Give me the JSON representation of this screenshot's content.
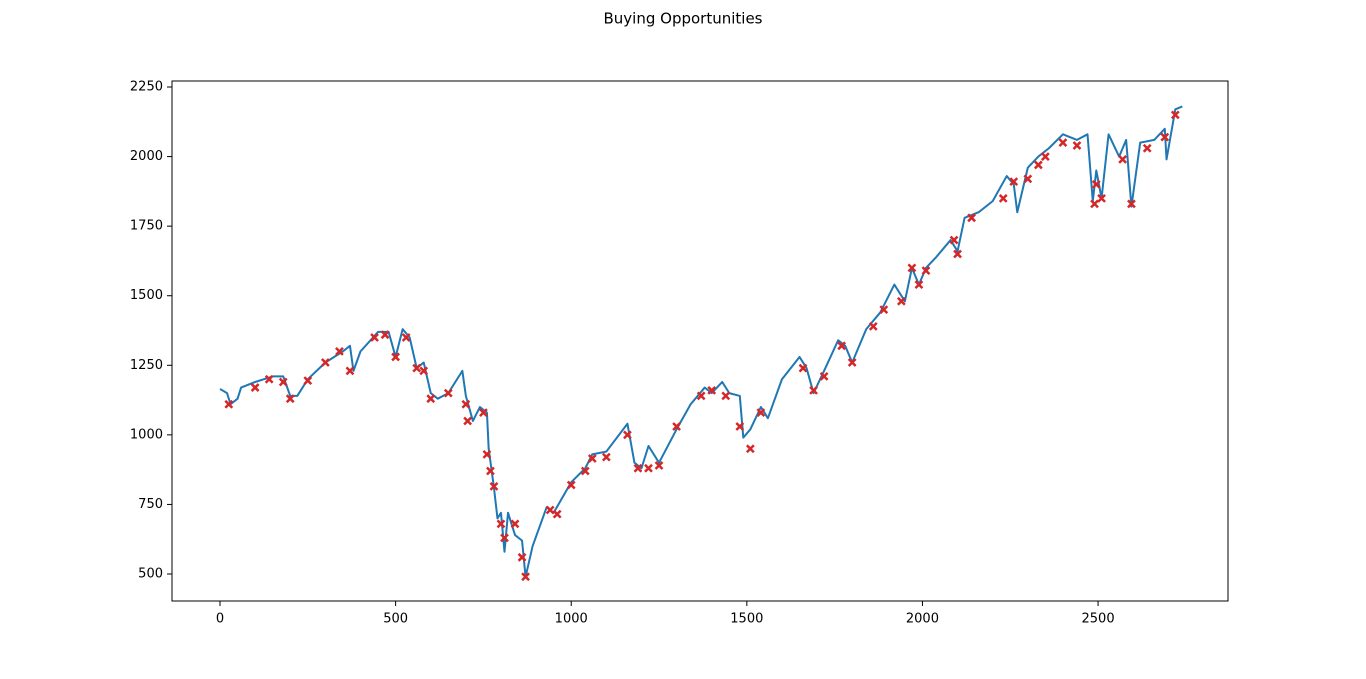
{
  "chart_data": {
    "type": "line",
    "title": "Buying Opportunities",
    "xlim": [
      -136.7,
      2870
    ],
    "ylim": [
      403,
      2271.6
    ],
    "xticks": [
      0,
      500,
      1000,
      1500,
      2000,
      2500
    ],
    "yticks": [
      500,
      750,
      1000,
      1250,
      1500,
      1750,
      2000,
      2250
    ],
    "series": [
      {
        "color": "#1f77b4",
        "x": [
          0,
          20,
          30,
          50,
          60,
          100,
          150,
          180,
          200,
          220,
          250,
          300,
          350,
          370,
          380,
          400,
          450,
          480,
          500,
          520,
          540,
          560,
          580,
          600,
          620,
          650,
          690,
          700,
          720,
          740,
          760,
          765,
          780,
          790,
          800,
          810,
          820,
          840,
          860,
          870,
          890,
          930,
          950,
          1000,
          1040,
          1060,
          1100,
          1160,
          1180,
          1200,
          1220,
          1250,
          1300,
          1340,
          1380,
          1400,
          1430,
          1450,
          1480,
          1490,
          1510,
          1540,
          1560,
          1600,
          1650,
          1670,
          1690,
          1720,
          1760,
          1780,
          1800,
          1840,
          1880,
          1920,
          1950,
          1970,
          1990,
          2010,
          2040,
          2080,
          2100,
          2120,
          2160,
          2200,
          2240,
          2260,
          2270,
          2300,
          2330,
          2360,
          2400,
          2440,
          2470,
          2485,
          2495,
          2510,
          2530,
          2560,
          2580,
          2595,
          2620,
          2660,
          2690,
          2695,
          2720,
          2740
        ],
        "values": [
          1165,
          1150,
          1110,
          1130,
          1170,
          1190,
          1210,
          1210,
          1140,
          1140,
          1200,
          1260,
          1300,
          1320,
          1230,
          1300,
          1370,
          1370,
          1280,
          1380,
          1350,
          1240,
          1260,
          1150,
          1130,
          1150,
          1230,
          1140,
          1050,
          1100,
          1080,
          950,
          810,
          700,
          720,
          580,
          720,
          640,
          620,
          490,
          600,
          740,
          720,
          830,
          880,
          930,
          940,
          1040,
          900,
          880,
          960,
          900,
          1020,
          1110,
          1170,
          1150,
          1190,
          1150,
          1140,
          990,
          1020,
          1100,
          1060,
          1200,
          1280,
          1240,
          1150,
          1230,
          1340,
          1320,
          1260,
          1380,
          1440,
          1540,
          1480,
          1600,
          1540,
          1600,
          1640,
          1700,
          1660,
          1780,
          1800,
          1840,
          1930,
          1900,
          1800,
          1960,
          2000,
          2030,
          2080,
          2060,
          2080,
          1840,
          1950,
          1850,
          2080,
          2000,
          2060,
          1820,
          2050,
          2060,
          2100,
          1990,
          2170,
          2180
        ]
      },
      {
        "color": "#d62728",
        "marker": "x",
        "x": [
          25,
          100,
          140,
          180,
          200,
          250,
          300,
          340,
          370,
          440,
          470,
          500,
          530,
          560,
          580,
          600,
          650,
          700,
          705,
          750,
          760,
          770,
          780,
          800,
          810,
          840,
          860,
          870,
          940,
          960,
          1000,
          1040,
          1060,
          1100,
          1160,
          1190,
          1220,
          1250,
          1300,
          1370,
          1400,
          1440,
          1480,
          1510,
          1540,
          1660,
          1690,
          1720,
          1770,
          1800,
          1860,
          1890,
          1940,
          1970,
          1990,
          2010,
          2090,
          2100,
          2140,
          2230,
          2260,
          2300,
          2330,
          2350,
          2400,
          2440,
          2490,
          2495,
          2510,
          2570,
          2595,
          2640,
          2690,
          2720
        ],
        "values": [
          1110,
          1170,
          1200,
          1190,
          1130,
          1195,
          1260,
          1300,
          1230,
          1350,
          1360,
          1280,
          1350,
          1240,
          1230,
          1130,
          1150,
          1110,
          1050,
          1080,
          930,
          870,
          815,
          680,
          630,
          680,
          560,
          490,
          730,
          715,
          820,
          870,
          915,
          920,
          1000,
          880,
          880,
          890,
          1030,
          1140,
          1160,
          1140,
          1030,
          950,
          1080,
          1240,
          1160,
          1210,
          1320,
          1260,
          1390,
          1450,
          1480,
          1600,
          1540,
          1590,
          1700,
          1650,
          1780,
          1850,
          1910,
          1920,
          1970,
          2000,
          2050,
          2040,
          1830,
          1900,
          1850,
          1990,
          1830,
          2030,
          2070,
          2150
        ]
      }
    ]
  }
}
